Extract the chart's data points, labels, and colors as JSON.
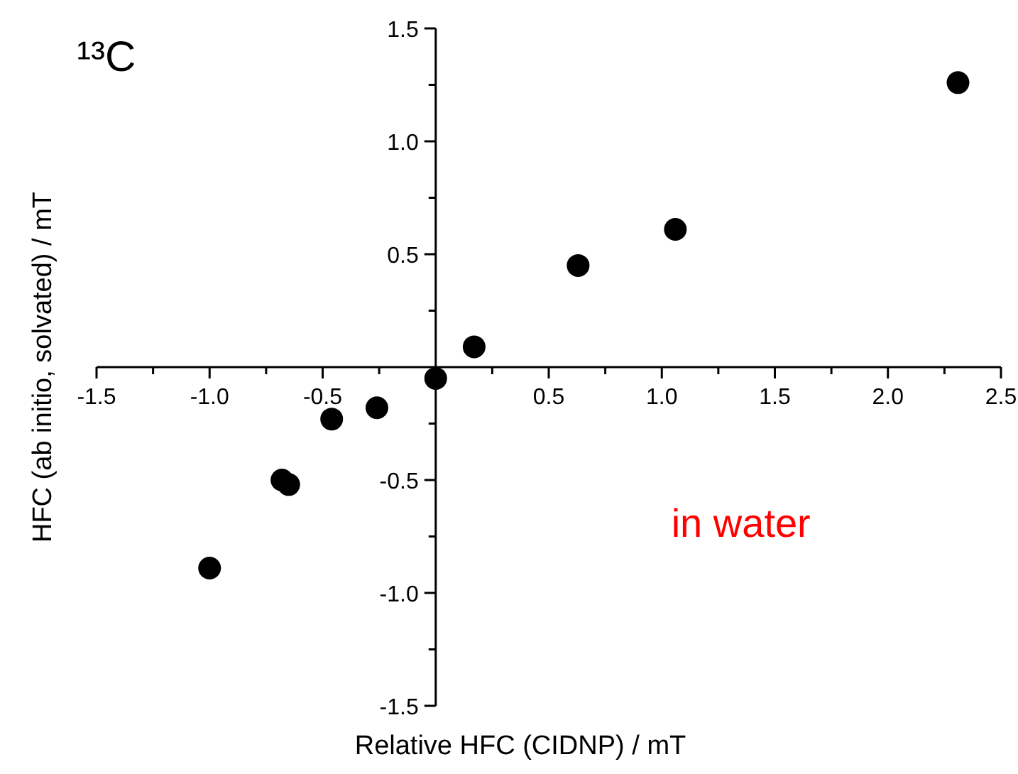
{
  "chart_data": {
    "type": "scatter",
    "title": "¹³C",
    "xlabel": "Relative HFC (CIDNP) / mT",
    "ylabel": "HFC (ab initio, solvated) / mT",
    "annotations": [
      "in water"
    ],
    "x": [
      -1.0,
      -0.68,
      -0.65,
      -0.46,
      -0.26,
      0.0,
      0.17,
      0.63,
      1.06,
      2.31
    ],
    "series": [
      {
        "color": "#000000",
        "values": [
          -0.89,
          -0.5,
          -0.52,
          -0.23,
          -0.18,
          -0.05,
          0.09,
          0.45,
          0.61,
          1.26
        ]
      }
    ],
    "xlim": [
      -1.5,
      2.5
    ],
    "ylim": [
      -1.5,
      1.5
    ],
    "xticks": [
      -1.5,
      {
        "value": -1.25,
        "label": null
      },
      {
        "value": -1.0,
        "label": "-1.0"
      },
      {
        "value": -0.75,
        "label": null
      },
      -0.5,
      {
        "value": -0.25,
        "label": null
      },
      {
        "value": 0.25,
        "label": null
      },
      0.5,
      {
        "value": 0.75,
        "label": null
      },
      {
        "value": 1.0,
        "label": "1.0"
      },
      {
        "value": 1.25,
        "label": null
      },
      1.5,
      {
        "value": 1.75,
        "label": null
      },
      {
        "value": 2.0,
        "label": "2.0"
      },
      {
        "value": 2.25,
        "label": null
      },
      2.5
    ],
    "yticks": [
      -1.5,
      {
        "value": -1.25,
        "label": null
      },
      {
        "value": -1.0,
        "label": "-1.0"
      },
      {
        "value": -0.75,
        "label": null
      },
      -0.5,
      {
        "value": -0.25,
        "label": null
      },
      {
        "value": 0.25,
        "label": null
      },
      0.5,
      {
        "value": 0.75,
        "label": null
      },
      {
        "value": 1.0,
        "label": "1.0"
      },
      {
        "value": 1.25,
        "label": null
      },
      1.5
    ],
    "marker": "circle"
  }
}
